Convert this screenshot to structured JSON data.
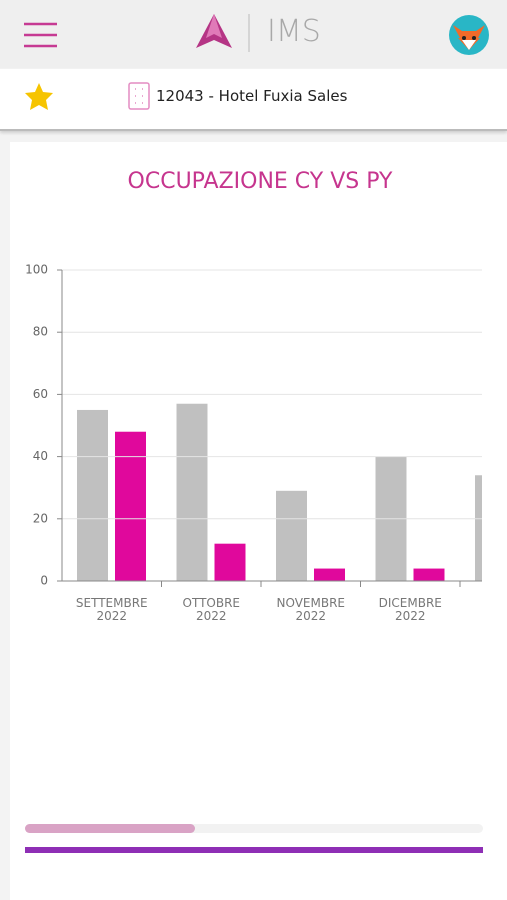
{
  "header": {
    "brand": "IMS"
  },
  "hotel": {
    "label": "12043 - Hotel Fuxia Sales"
  },
  "chart_data": {
    "type": "bar",
    "title": "OCCUPAZIONE CY VS PY",
    "categories": [
      "SETTEMBRE 2022",
      "OTTOBRE 2022",
      "NOVEMBRE 2022",
      "DICEMBRE 2022",
      null
    ],
    "series": [
      {
        "color": "#c0c0c0",
        "values": [
          55,
          57,
          29,
          40,
          34
        ]
      },
      {
        "color": "#e0089c",
        "values": [
          48,
          12,
          4,
          4,
          null
        ]
      }
    ],
    "ylim": [
      0,
      100
    ],
    "yticks": [
      0,
      20,
      40,
      60,
      80,
      100
    ],
    "grid": true
  }
}
